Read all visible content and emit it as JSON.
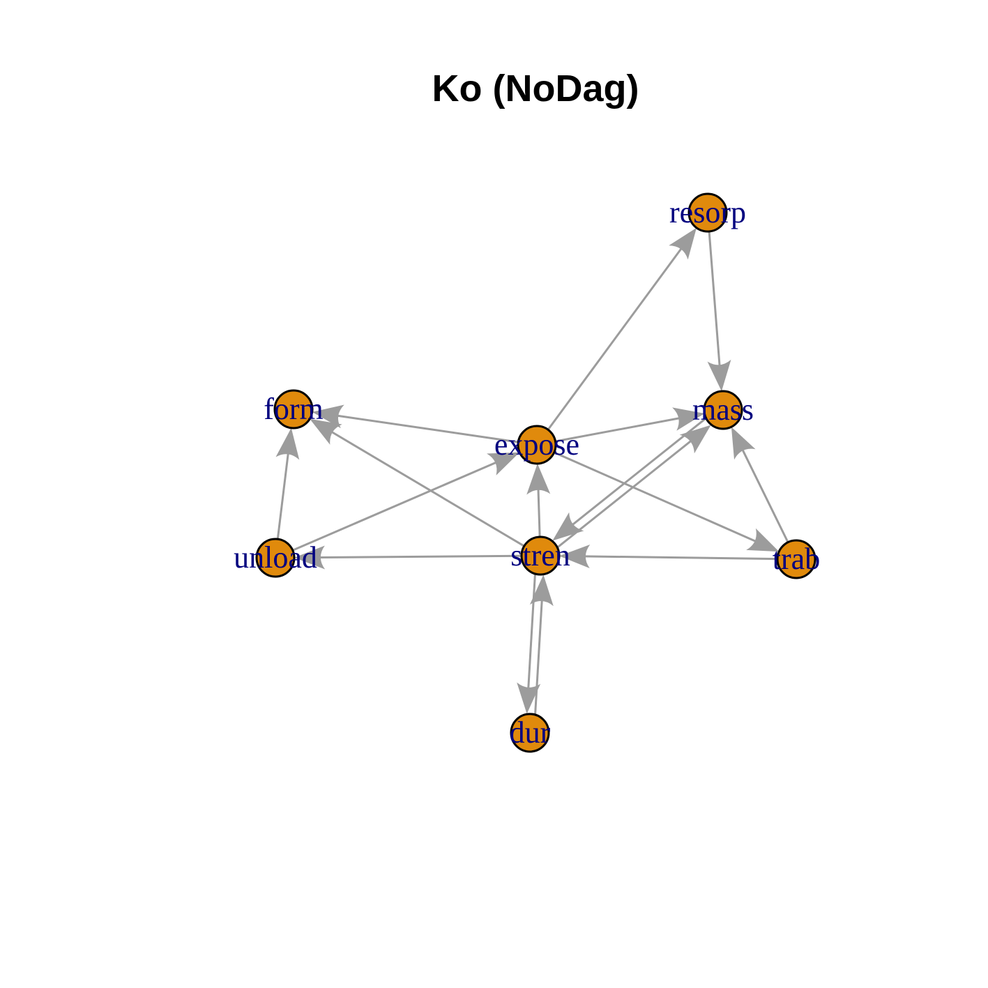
{
  "title": "Ko (NoDag)",
  "colors": {
    "node_fill": "#E08A0C",
    "node_stroke": "#000000",
    "edge": "#9C9C9C",
    "label": "#00007F",
    "background": "#FFFFFF"
  },
  "nodes": [
    {
      "id": "resorp",
      "label": "resorp"
    },
    {
      "id": "form",
      "label": "form"
    },
    {
      "id": "mass",
      "label": "mass"
    },
    {
      "id": "expose",
      "label": "expose"
    },
    {
      "id": "unload",
      "label": "unload"
    },
    {
      "id": "stren",
      "label": "stren"
    },
    {
      "id": "trab",
      "label": "trab"
    },
    {
      "id": "dur",
      "label": "dur"
    }
  ],
  "edges": [
    {
      "from": "expose",
      "to": "resorp"
    },
    {
      "from": "resorp",
      "to": "mass"
    },
    {
      "from": "expose",
      "to": "form"
    },
    {
      "from": "expose",
      "to": "mass"
    },
    {
      "from": "expose",
      "to": "trab"
    },
    {
      "from": "unload",
      "to": "form"
    },
    {
      "from": "unload",
      "to": "expose"
    },
    {
      "from": "stren",
      "to": "form"
    },
    {
      "from": "stren",
      "to": "expose"
    },
    {
      "from": "stren",
      "to": "unload"
    },
    {
      "from": "stren",
      "to": "mass"
    },
    {
      "from": "mass",
      "to": "stren"
    },
    {
      "from": "trab",
      "to": "mass"
    },
    {
      "from": "trab",
      "to": "stren"
    },
    {
      "from": "dur",
      "to": "stren"
    },
    {
      "from": "stren",
      "to": "dur"
    }
  ]
}
